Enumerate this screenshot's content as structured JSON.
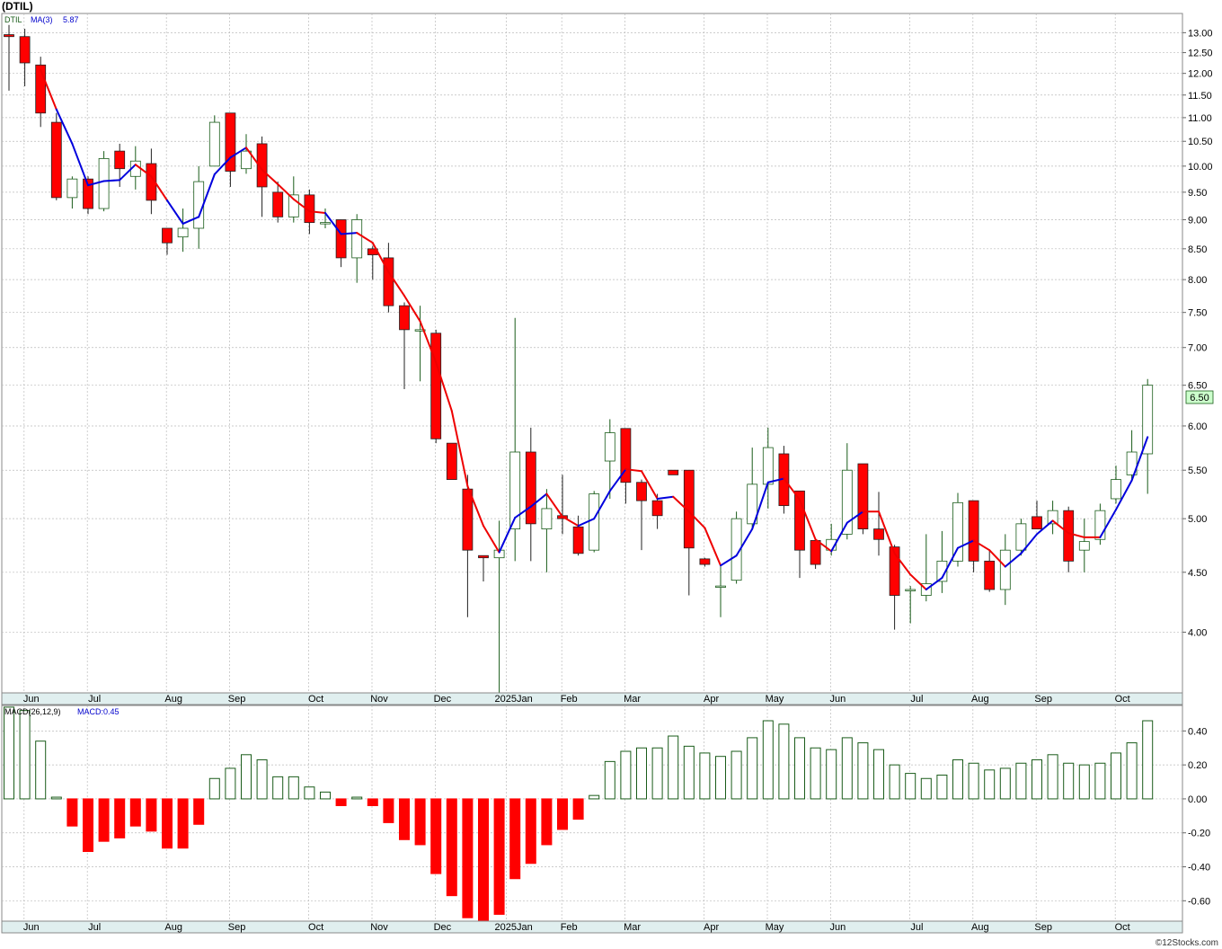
{
  "header": {
    "symbol_title": "(DTIL)",
    "price_legend_symbol": "DTIL",
    "price_legend_ma": "MA(3)",
    "price_legend_ma_value": "5.87",
    "macd_legend_label": "MACD(26,12,9)",
    "macd_legend_value": "MACD:0.45",
    "watermark": "©12Stocks.com"
  },
  "colors": {
    "up_body": "#ffffff",
    "up_border": "#1a5c1a",
    "down_body": "#ff0000",
    "ma_rising": "#0000dd",
    "ma_falling": "#ee0000",
    "macd_pos": "#1a5c1a",
    "macd_neg": "#ff0000",
    "last_price_box": "#ccffcc"
  },
  "chart_data": [
    {
      "type": "candlestick",
      "name": "DTIL weekly",
      "y_scale": "log",
      "ylim": [
        3.55,
        13.5
      ],
      "y_ticks": [
        4.0,
        4.5,
        5.0,
        5.5,
        6.0,
        6.5,
        7.0,
        7.5,
        8.0,
        8.5,
        9.0,
        9.5,
        10.0,
        10.5,
        11.0,
        11.5,
        12.0,
        12.5,
        13.0
      ],
      "y_tick_labels": [
        "4.00",
        "4.50",
        "5.00",
        "5.50",
        "6.00",
        "6.50",
        "7.00",
        "7.50",
        "8.00",
        "8.50",
        "9.00",
        "9.50",
        "10.00",
        "10.50",
        "11.00",
        "11.50",
        "12.00",
        "12.50",
        "13.00"
      ],
      "x_month_labels": [
        {
          "label": "Jun",
          "week": 1
        },
        {
          "label": "Jul",
          "week": 5
        },
        {
          "label": "Aug",
          "week": 10
        },
        {
          "label": "Sep",
          "week": 14
        },
        {
          "label": "Oct",
          "week": 19
        },
        {
          "label": "Nov",
          "week": 23
        },
        {
          "label": "Dec",
          "week": 27
        },
        {
          "label": "2025Jan",
          "week": 31.5
        },
        {
          "label": "Feb",
          "week": 35
        },
        {
          "label": "Mar",
          "week": 39
        },
        {
          "label": "Apr",
          "week": 44
        },
        {
          "label": "May",
          "week": 48
        },
        {
          "label": "Jun",
          "week": 52
        },
        {
          "label": "Jul",
          "week": 57
        },
        {
          "label": "Aug",
          "week": 61
        },
        {
          "label": "Sep",
          "week": 65
        },
        {
          "label": "Oct",
          "week": 70
        }
      ],
      "last_price_label": "6.50",
      "ohlc": [
        {
          "o": 12.95,
          "h": 13.2,
          "l": 11.6,
          "c": 12.9
        },
        {
          "o": 12.9,
          "h": 13.1,
          "l": 11.7,
          "c": 12.25
        },
        {
          "o": 12.2,
          "h": 12.4,
          "l": 10.8,
          "c": 11.1
        },
        {
          "o": 10.9,
          "h": 11.1,
          "l": 9.35,
          "c": 9.4
        },
        {
          "o": 9.4,
          "h": 9.8,
          "l": 9.2,
          "c": 9.75
        },
        {
          "o": 9.75,
          "h": 9.8,
          "l": 9.1,
          "c": 9.2
        },
        {
          "o": 9.2,
          "h": 10.3,
          "l": 9.15,
          "c": 10.15
        },
        {
          "o": 10.3,
          "h": 10.45,
          "l": 9.6,
          "c": 9.95
        },
        {
          "o": 9.8,
          "h": 10.4,
          "l": 9.55,
          "c": 10.1
        },
        {
          "o": 10.05,
          "h": 10.35,
          "l": 9.1,
          "c": 9.35
        },
        {
          "o": 8.85,
          "h": 8.85,
          "l": 8.4,
          "c": 8.6
        },
        {
          "o": 8.7,
          "h": 9.2,
          "l": 8.45,
          "c": 8.85
        },
        {
          "o": 8.85,
          "h": 10.0,
          "l": 8.5,
          "c": 9.7
        },
        {
          "o": 10.0,
          "h": 11.05,
          "l": 10.0,
          "c": 10.9
        },
        {
          "o": 11.1,
          "h": 11.1,
          "l": 9.6,
          "c": 9.9
        },
        {
          "o": 9.95,
          "h": 10.65,
          "l": 9.85,
          "c": 10.3
        },
        {
          "o": 10.45,
          "h": 10.6,
          "l": 9.05,
          "c": 9.6
        },
        {
          "o": 9.5,
          "h": 9.7,
          "l": 8.95,
          "c": 9.05
        },
        {
          "o": 9.05,
          "h": 9.8,
          "l": 8.95,
          "c": 9.45
        },
        {
          "o": 9.45,
          "h": 9.55,
          "l": 8.75,
          "c": 8.95
        },
        {
          "o": 8.95,
          "h": 9.2,
          "l": 8.85,
          "c": 8.95
        },
        {
          "o": 9.0,
          "h": 9.0,
          "l": 8.2,
          "c": 8.35
        },
        {
          "o": 8.35,
          "h": 9.1,
          "l": 7.95,
          "c": 9.0
        },
        {
          "o": 8.5,
          "h": 8.55,
          "l": 8.0,
          "c": 8.4
        },
        {
          "o": 8.35,
          "h": 8.6,
          "l": 7.5,
          "c": 7.6
        },
        {
          "o": 7.6,
          "h": 7.65,
          "l": 6.45,
          "c": 7.25
        },
        {
          "o": 7.25,
          "h": 7.6,
          "l": 6.55,
          "c": 7.25
        },
        {
          "o": 7.2,
          "h": 7.25,
          "l": 5.8,
          "c": 5.85
        },
        {
          "o": 5.8,
          "h": 5.8,
          "l": 5.4,
          "c": 5.4
        },
        {
          "o": 5.3,
          "h": 5.45,
          "l": 4.12,
          "c": 4.7
        },
        {
          "o": 4.65,
          "h": 4.65,
          "l": 4.42,
          "c": 4.63
        },
        {
          "o": 4.63,
          "h": 4.98,
          "l": 3.55,
          "c": 4.7
        },
        {
          "o": 4.9,
          "h": 7.42,
          "l": 4.6,
          "c": 5.7
        },
        {
          "o": 5.7,
          "h": 5.98,
          "l": 4.6,
          "c": 4.95
        },
        {
          "o": 4.9,
          "h": 5.3,
          "l": 4.5,
          "c": 5.1
        },
        {
          "o": 5.03,
          "h": 5.45,
          "l": 4.85,
          "c": 5.0
        },
        {
          "o": 4.92,
          "h": 5.03,
          "l": 4.65,
          "c": 4.67
        },
        {
          "o": 4.7,
          "h": 5.28,
          "l": 4.68,
          "c": 5.25
        },
        {
          "o": 5.6,
          "h": 6.08,
          "l": 5.2,
          "c": 5.92
        },
        {
          "o": 5.97,
          "h": 5.97,
          "l": 5.15,
          "c": 5.37
        },
        {
          "o": 5.37,
          "h": 5.4,
          "l": 4.7,
          "c": 5.18
        },
        {
          "o": 5.18,
          "h": 5.25,
          "l": 4.9,
          "c": 5.03
        },
        {
          "o": 5.5,
          "h": 5.5,
          "l": 5.45,
          "c": 5.45
        },
        {
          "o": 5.5,
          "h": 5.5,
          "l": 4.3,
          "c": 4.72
        },
        {
          "o": 4.62,
          "h": 4.63,
          "l": 4.55,
          "c": 4.57
        },
        {
          "o": 4.38,
          "h": 4.55,
          "l": 4.12,
          "c": 4.38
        },
        {
          "o": 4.43,
          "h": 5.07,
          "l": 4.4,
          "c": 5.0
        },
        {
          "o": 4.95,
          "h": 5.75,
          "l": 4.9,
          "c": 5.35
        },
        {
          "o": 5.35,
          "h": 5.98,
          "l": 5.1,
          "c": 5.75
        },
        {
          "o": 5.68,
          "h": 5.77,
          "l": 5.05,
          "c": 5.13
        },
        {
          "o": 5.28,
          "h": 5.28,
          "l": 4.45,
          "c": 4.7
        },
        {
          "o": 4.79,
          "h": 4.79,
          "l": 4.53,
          "c": 4.57
        },
        {
          "o": 4.7,
          "h": 4.95,
          "l": 4.65,
          "c": 4.8
        },
        {
          "o": 4.85,
          "h": 5.8,
          "l": 4.8,
          "c": 5.5
        },
        {
          "o": 5.57,
          "h": 5.57,
          "l": 4.85,
          "c": 4.9
        },
        {
          "o": 4.9,
          "h": 5.27,
          "l": 4.65,
          "c": 4.8
        },
        {
          "o": 4.73,
          "h": 4.75,
          "l": 4.02,
          "c": 4.3
        },
        {
          "o": 4.35,
          "h": 4.38,
          "l": 4.07,
          "c": 4.35
        },
        {
          "o": 4.3,
          "h": 4.85,
          "l": 4.25,
          "c": 4.4
        },
        {
          "o": 4.42,
          "h": 4.88,
          "l": 4.32,
          "c": 4.6
        },
        {
          "o": 4.6,
          "h": 5.26,
          "l": 4.55,
          "c": 5.16
        },
        {
          "o": 5.18,
          "h": 5.18,
          "l": 4.5,
          "c": 4.6
        },
        {
          "o": 4.6,
          "h": 4.7,
          "l": 4.33,
          "c": 4.35
        },
        {
          "o": 4.35,
          "h": 4.85,
          "l": 4.22,
          "c": 4.7
        },
        {
          "o": 4.7,
          "h": 5.0,
          "l": 4.65,
          "c": 4.95
        },
        {
          "o": 5.02,
          "h": 5.18,
          "l": 4.9,
          "c": 4.9
        },
        {
          "o": 4.95,
          "h": 5.18,
          "l": 4.85,
          "c": 5.08
        },
        {
          "o": 5.08,
          "h": 5.12,
          "l": 4.5,
          "c": 4.6
        },
        {
          "o": 4.7,
          "h": 5.0,
          "l": 4.5,
          "c": 4.78
        },
        {
          "o": 4.8,
          "h": 5.15,
          "l": 4.75,
          "c": 5.08
        },
        {
          "o": 5.2,
          "h": 5.55,
          "l": 5.15,
          "c": 5.4
        },
        {
          "o": 5.45,
          "h": 5.95,
          "l": 5.4,
          "c": 5.7
        },
        {
          "o": 5.68,
          "h": 6.58,
          "l": 5.25,
          "c": 6.5
        }
      ],
      "ma3": [
        null,
        null,
        12.08,
        11.18,
        10.45,
        9.63,
        9.71,
        9.73,
        10.03,
        9.8,
        9.35,
        8.93,
        9.05,
        9.84,
        10.17,
        10.37,
        9.93,
        9.65,
        9.37,
        9.15,
        9.12,
        8.75,
        8.77,
        8.6,
        8.12,
        7.75,
        7.37,
        6.8,
        6.18,
        5.33,
        4.93,
        4.68,
        5.01,
        5.12,
        5.25,
        5.02,
        4.93,
        5.0,
        5.28,
        5.51,
        5.49,
        5.2,
        5.22,
        5.07,
        4.91,
        4.56,
        4.65,
        4.9,
        5.37,
        5.41,
        5.19,
        4.8,
        4.69,
        4.96,
        5.07,
        5.07,
        4.67,
        4.48,
        4.35,
        4.45,
        4.72,
        4.79,
        4.7,
        4.55,
        4.67,
        4.85,
        4.98,
        4.86,
        4.82,
        4.82,
        5.09,
        5.39,
        5.87
      ],
      "ma3_direction": [
        "down",
        "down",
        "down",
        "down",
        "up",
        "up",
        "up",
        "up",
        "up",
        "down",
        "down",
        "up",
        "up",
        "up",
        "up",
        "up",
        "down",
        "down",
        "down",
        "down",
        "down",
        "up",
        "up",
        "down",
        "down",
        "down",
        "down",
        "down",
        "down",
        "down",
        "down",
        "down",
        "up",
        "up",
        "up",
        "down",
        "down",
        "up",
        "up",
        "up",
        "down",
        "down",
        "up",
        "down",
        "down",
        "down",
        "up",
        "up",
        "up",
        "up",
        "down",
        "down",
        "down",
        "up",
        "up",
        "down",
        "down",
        "down",
        "down",
        "up",
        "up",
        "up",
        "down",
        "down",
        "up",
        "up",
        "up",
        "down",
        "down",
        "down",
        "up",
        "up",
        "up"
      ]
    },
    {
      "type": "bar",
      "name": "MACD(26,12,9)",
      "ylim": [
        -0.72,
        0.55
      ],
      "y_ticks": [
        0.4,
        0.2,
        0.0,
        -0.2,
        -0.4,
        -0.6
      ],
      "y_tick_labels": [
        "0.40",
        "0.20",
        "0.00",
        "-0.20",
        "-0.40",
        "-0.60"
      ],
      "values": [
        0.54,
        0.52,
        0.34,
        0.01,
        -0.16,
        -0.31,
        -0.25,
        -0.23,
        -0.16,
        -0.19,
        -0.29,
        -0.29,
        -0.15,
        0.12,
        0.18,
        0.26,
        0.23,
        0.13,
        0.13,
        0.07,
        0.04,
        -0.04,
        0.01,
        -0.04,
        -0.14,
        -0.24,
        -0.27,
        -0.44,
        -0.57,
        -0.7,
        -0.76,
        -0.68,
        -0.47,
        -0.38,
        -0.27,
        -0.18,
        -0.12,
        0.02,
        0.22,
        0.28,
        0.3,
        0.3,
        0.37,
        0.31,
        0.27,
        0.25,
        0.28,
        0.36,
        0.46,
        0.44,
        0.36,
        0.3,
        0.29,
        0.36,
        0.33,
        0.29,
        0.2,
        0.15,
        0.12,
        0.14,
        0.23,
        0.21,
        0.17,
        0.18,
        0.21,
        0.23,
        0.26,
        0.21,
        0.2,
        0.21,
        0.27,
        0.33,
        0.46
      ]
    }
  ]
}
